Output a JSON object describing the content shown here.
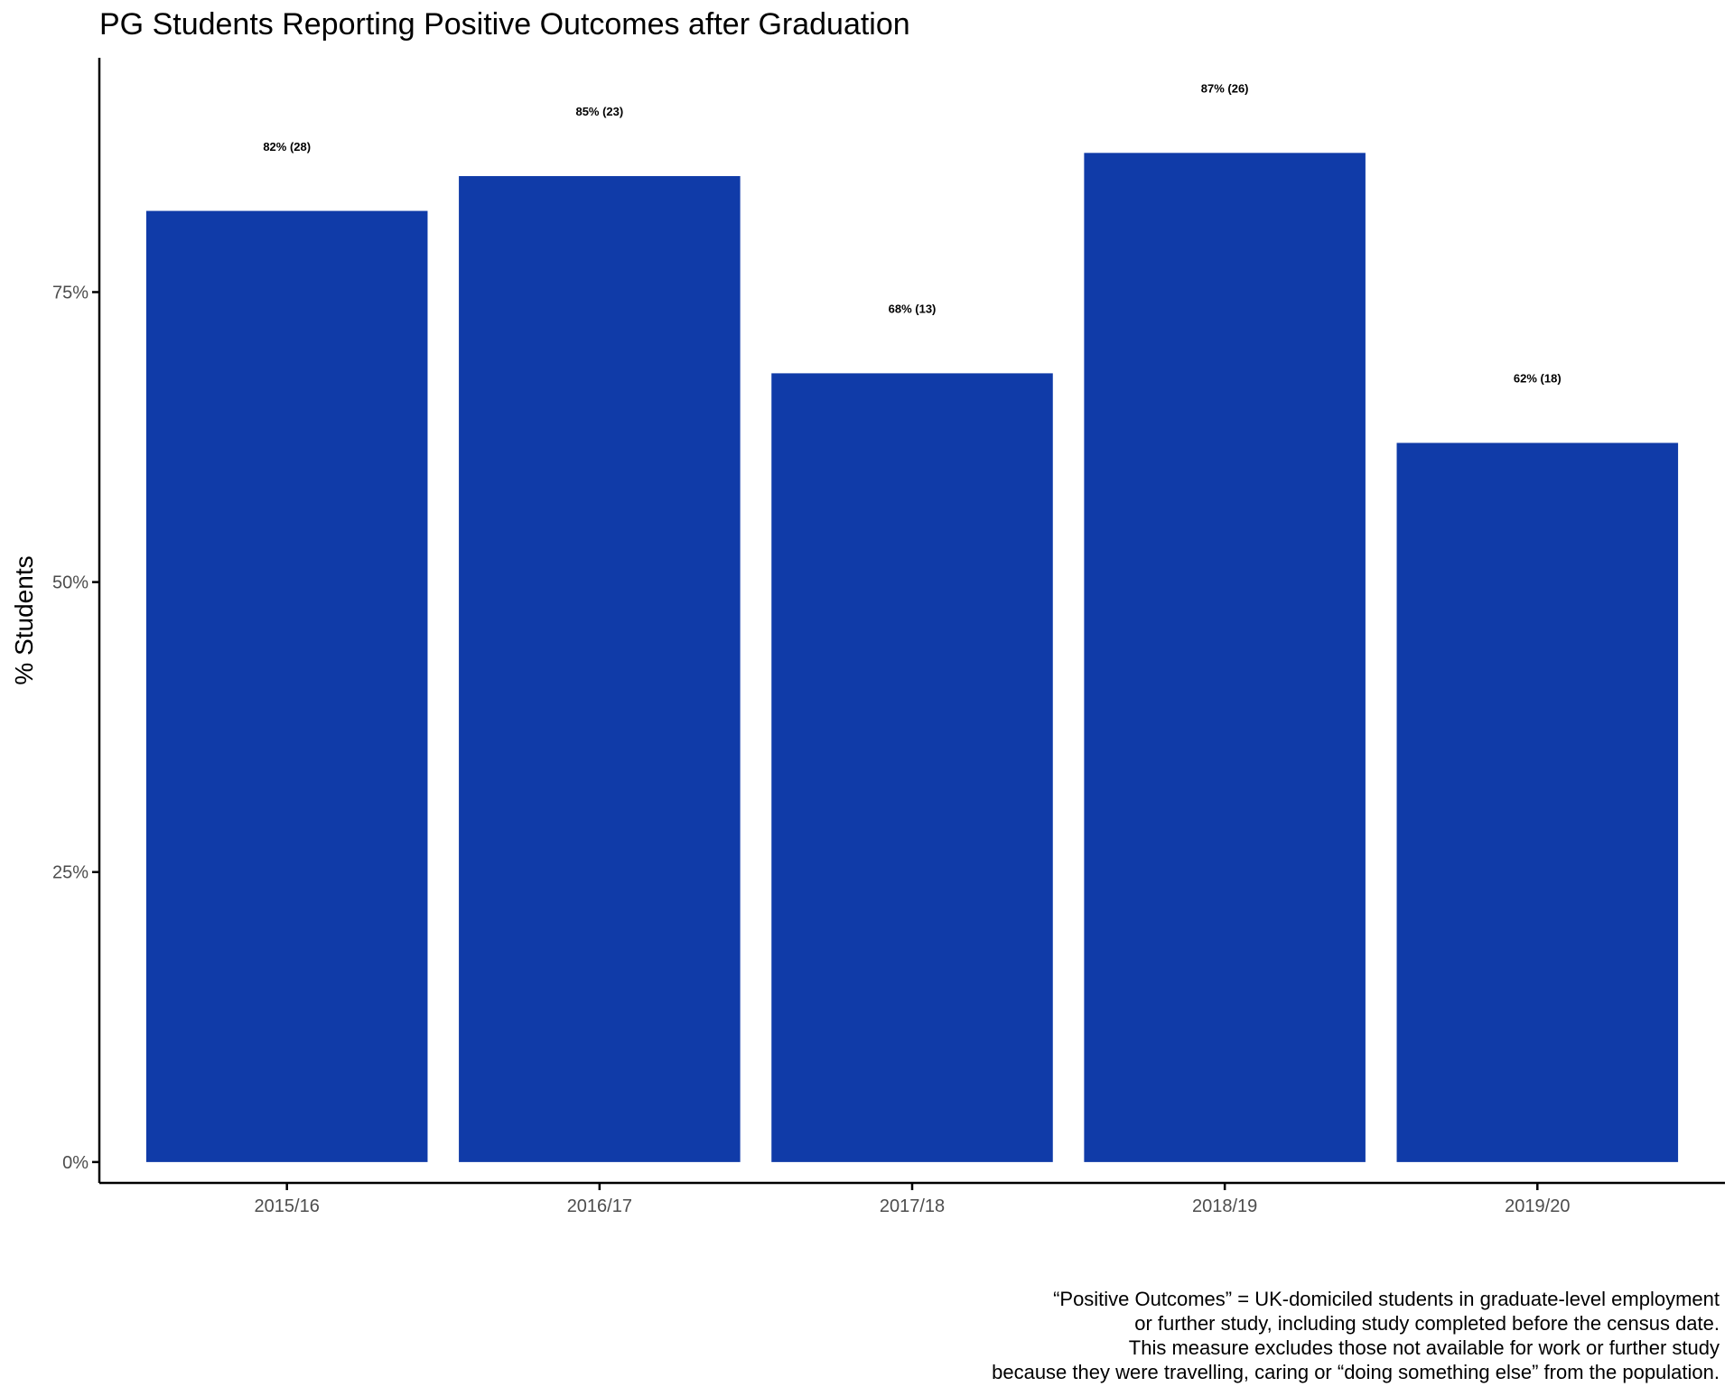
{
  "chart_data": {
    "type": "bar",
    "title": "PG Students Reporting Positive Outcomes after Graduation",
    "xlabel": "",
    "ylabel": "% Students",
    "categories": [
      "2015/16",
      "2016/17",
      "2017/18",
      "2018/19",
      "2019/20"
    ],
    "values": [
      82,
      85,
      68,
      87,
      62
    ],
    "data_labels": [
      "82% (28)",
      "85% (23)",
      "68% (13)",
      "87% (26)",
      "62% (18)"
    ],
    "y_ticks": [
      0,
      25,
      50,
      75
    ],
    "y_tick_labels": [
      "0%",
      "25%",
      "50%",
      "75%"
    ],
    "ylim": [
      -1.8,
      95.2
    ],
    "bar_color": "#103ba8",
    "grid": false,
    "legend": "none"
  },
  "caption": [
    "“Positive Outcomes” = UK-domiciled students in graduate-level employment",
    "or further study, including study completed before the census date.",
    "This measure excludes those not available for work or further study",
    "because they were travelling, caring or “doing  something else” from the population."
  ]
}
